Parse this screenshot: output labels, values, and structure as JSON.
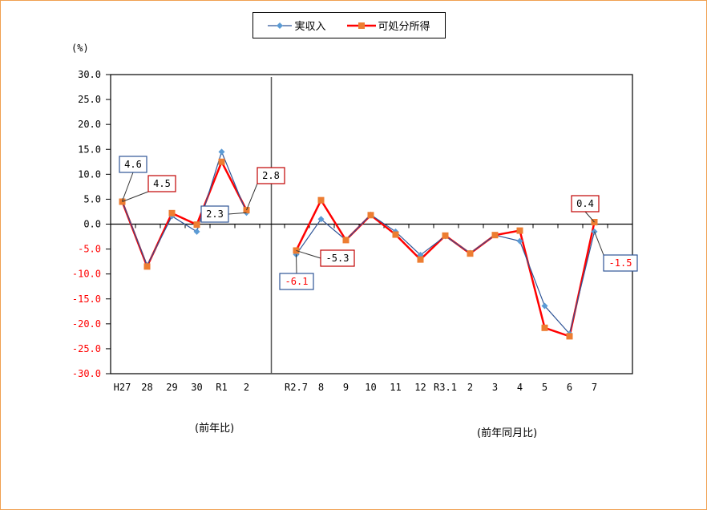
{
  "chart_data": {
    "type": "line",
    "title": "",
    "ylabel": "(%)",
    "xlabel": "",
    "ylim": [
      -30,
      30
    ],
    "yticks": [
      "30.0",
      "25.0",
      "20.0",
      "15.0",
      "10.0",
      "5.0",
      "0.0",
      "-5.0",
      "-10.0",
      "-15.0",
      "-20.0",
      "-25.0",
      "-30.0"
    ],
    "negative_tick_color": "#ff0000",
    "grid": false,
    "legend_position": "top",
    "panels": [
      {
        "label": "(前年比)",
        "categories": [
          "H27",
          "28",
          "29",
          "30",
          "R1",
          "2"
        ]
      },
      {
        "label": "(前年同月比)",
        "categories": [
          "R2.7",
          "8",
          "9",
          "10",
          "11",
          "12",
          "R3.1",
          "2",
          "3",
          "4",
          "5",
          "6",
          "7"
        ]
      }
    ],
    "categories": [
      "H27",
      "28",
      "29",
      "30",
      "R1",
      "2",
      "R2.7",
      "8",
      "9",
      "10",
      "11",
      "12",
      "R3.1",
      "2",
      "3",
      "4",
      "5",
      "6",
      "7"
    ],
    "series": [
      {
        "name": "実収入",
        "color": "#5b9bd5",
        "line_color": "#2f5597",
        "marker": "diamond",
        "values": [
          4.6,
          -8.3,
          1.6,
          -1.5,
          14.5,
          2.3,
          -6.1,
          1.0,
          -3.2,
          1.9,
          -1.5,
          -6.2,
          -2.4,
          -5.8,
          -2.2,
          -3.4,
          -16.4,
          -22.0,
          -1.5
        ]
      },
      {
        "name": "可処分所得",
        "color": "#ed7d31",
        "line_color": "#ff0000",
        "marker": "square",
        "values": [
          4.5,
          -8.5,
          2.2,
          -0.1,
          12.5,
          2.8,
          -5.3,
          4.8,
          -3.2,
          1.8,
          -2.1,
          -7.1,
          -2.3,
          -5.9,
          -2.2,
          -1.3,
          -20.8,
          -22.5,
          0.4
        ]
      }
    ],
    "annotations": [
      {
        "text": "4.6",
        "series": "実収入",
        "category": "H27",
        "box_color": "#2f5597",
        "text_color": "#000000"
      },
      {
        "text": "4.5",
        "series": "可処分所得",
        "category": "H27",
        "box_color": "#c00000",
        "text_color": "#000000"
      },
      {
        "text": "2.3",
        "series": "実収入",
        "category": "2",
        "box_color": "#2f5597",
        "text_color": "#000000"
      },
      {
        "text": "2.8",
        "series": "可処分所得",
        "category": "2",
        "box_color": "#c00000",
        "text_color": "#000000"
      },
      {
        "text": "-6.1",
        "series": "実収入",
        "category": "R2.7",
        "box_color": "#2f5597",
        "text_color": "#ff0000"
      },
      {
        "text": "-5.3",
        "series": "可処分所得",
        "category": "R2.7",
        "box_color": "#c00000",
        "text_color": "#000000"
      },
      {
        "text": "0.4",
        "series": "可処分所得",
        "category": "7",
        "box_color": "#c00000",
        "text_color": "#000000"
      },
      {
        "text": "-1.5",
        "series": "実収入",
        "category": "7",
        "box_color": "#2f5597",
        "text_color": "#ff0000"
      }
    ]
  },
  "legend": {
    "items": [
      {
        "label": "実収入"
      },
      {
        "label": "可処分所得"
      }
    ]
  },
  "axis": {
    "unit_label": "(%)"
  },
  "sections": {
    "annual_label": "(前年比)",
    "monthly_label": "(前年同月比)"
  }
}
